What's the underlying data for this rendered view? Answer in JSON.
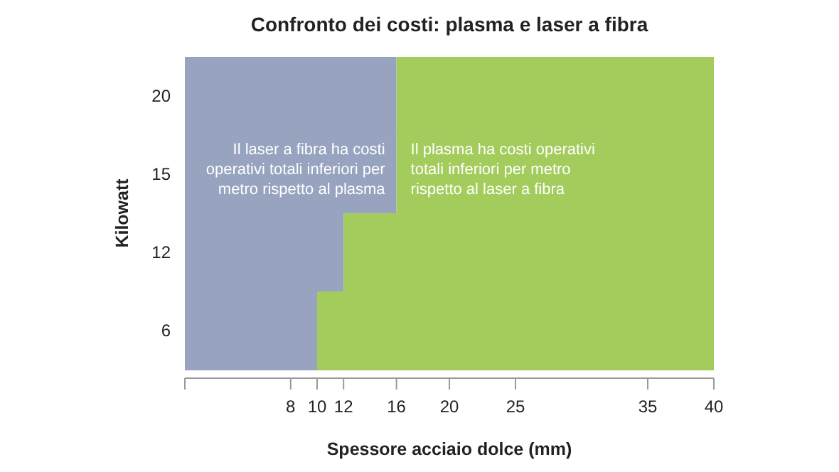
{
  "chart_data": {
    "type": "bar",
    "orientation": "horizontal",
    "stacked": true,
    "title": "Confronto dei costi: plasma e laser a fibra",
    "xlabel": "Spessore acciaio dolce (mm)",
    "ylabel": "Kilowatt",
    "categories": [
      "20",
      "15",
      "12",
      "6"
    ],
    "series": [
      {
        "color": "#97a3bf",
        "values": [
          16,
          16,
          12,
          10
        ]
      },
      {
        "color": "#a3cc5c",
        "values": [
          24,
          24,
          28,
          30
        ]
      }
    ],
    "xlim": [
      0,
      40
    ],
    "xticks": [
      8,
      10,
      12,
      16,
      20,
      25,
      35,
      40
    ],
    "grid": false,
    "annotations": [
      "Il laser a fibra ha costi operativi totali inferiori per metro rispetto al plasma",
      "Il plasma ha costi operativi totali inferiori per metro rispetto al laser a fibra"
    ]
  }
}
